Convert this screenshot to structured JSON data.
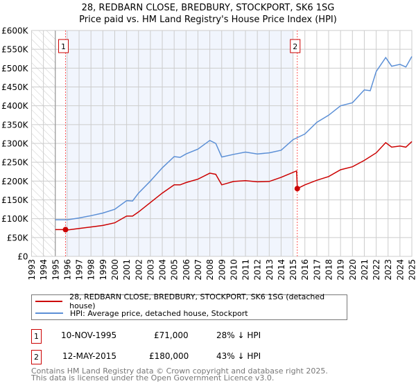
{
  "chart_data": {
    "type": "line",
    "title": "28, REDBARN CLOSE, BREDBURY, STOCKPORT, SK6 1SG",
    "subtitle": "Price paid vs. HM Land Registry's House Price Index (HPI)",
    "xlim": [
      1993,
      2025
    ],
    "ylim": [
      0,
      600000
    ],
    "x_ticks": [
      "1993",
      "1994",
      "1995",
      "1996",
      "1997",
      "1998",
      "1999",
      "2000",
      "2001",
      "2002",
      "2003",
      "2004",
      "2005",
      "2006",
      "2007",
      "2008",
      "2009",
      "2010",
      "2011",
      "2012",
      "2013",
      "2014",
      "2015",
      "2016",
      "2017",
      "2018",
      "2019",
      "2020",
      "2021",
      "2022",
      "2023",
      "2024",
      "2025"
    ],
    "y_ticks": [
      {
        "v": 0,
        "label": "£0"
      },
      {
        "v": 50000,
        "label": "£50K"
      },
      {
        "v": 100000,
        "label": "£100K"
      },
      {
        "v": 150000,
        "label": "£150K"
      },
      {
        "v": 200000,
        "label": "£200K"
      },
      {
        "v": 250000,
        "label": "£250K"
      },
      {
        "v": 300000,
        "label": "£300K"
      },
      {
        "v": 350000,
        "label": "£350K"
      },
      {
        "v": 400000,
        "label": "£400K"
      },
      {
        "v": 450000,
        "label": "£450K"
      },
      {
        "v": 500000,
        "label": "£500K"
      },
      {
        "v": 550000,
        "label": "£550K"
      },
      {
        "v": 600000,
        "label": "£600K"
      }
    ],
    "grid": true,
    "hatched_range": [
      1993,
      1995
    ],
    "shaded_range": [
      1995.86,
      2015.0
    ],
    "series": [
      {
        "name": "28, REDBARN CLOSE, BREDBURY, STOCKPORT, SK6 1SG (detached house)",
        "color": "#cc0000",
        "x": [
          1995,
          1995.86,
          1996,
          1997,
          1998,
          1999,
          2000,
          2001,
          2001.5,
          2002,
          2003,
          2004,
          2005,
          2005.5,
          2006,
          2007,
          2008,
          2008.5,
          2009,
          2010,
          2011,
          2012,
          2013,
          2014,
          2015.3,
          2015.37,
          2016,
          2017,
          2018,
          2019,
          2020,
          2021,
          2022,
          2022.8,
          2023.3,
          2024,
          2024.5,
          2025
        ],
        "y": [
          71000,
          71000,
          70000,
          74000,
          78000,
          82000,
          89000,
          107000,
          107000,
          118000,
          143000,
          168000,
          190000,
          190000,
          196000,
          205000,
          221000,
          218000,
          190000,
          199000,
          201000,
          198000,
          199000,
          210000,
          227000,
          180000,
          190000,
          202000,
          212000,
          230000,
          238000,
          255000,
          275000,
          302000,
          290000,
          293000,
          290000,
          305000
        ]
      },
      {
        "name": "HPI: Average price, detached house, Stockport",
        "color": "#5b8fd6",
        "x": [
          1995,
          1996,
          1997,
          1998,
          1999,
          2000,
          2001,
          2001.5,
          2002,
          2003,
          2004,
          2005,
          2005.5,
          2006,
          2007,
          2008,
          2008.5,
          2009,
          2010,
          2011,
          2012,
          2013,
          2014,
          2015,
          2016,
          2017,
          2018,
          2019,
          2020,
          2021,
          2021.5,
          2022,
          2022.8,
          2023.3,
          2024,
          2024.5,
          2025
        ],
        "y": [
          97000,
          97000,
          102000,
          108000,
          115000,
          125000,
          148000,
          147000,
          168000,
          200000,
          235000,
          265000,
          263000,
          272000,
          285000,
          308000,
          300000,
          264000,
          271000,
          277000,
          272000,
          275000,
          282000,
          310000,
          325000,
          356000,
          375000,
          400000,
          408000,
          442000,
          440000,
          491000,
          528000,
          505000,
          510000,
          503000,
          531000
        ]
      }
    ],
    "sales": [
      {
        "id": "1",
        "x": 1995.86,
        "y": 71000,
        "date": "10-NOV-1995",
        "price": "£71,000",
        "hpi_diff": "28% ↓ HPI"
      },
      {
        "id": "2",
        "x": 2015.36,
        "y": 180000,
        "date": "12-MAY-2015",
        "price": "£180,000",
        "hpi_diff": "43% ↓ HPI"
      }
    ],
    "legend_position": "below"
  },
  "legend": {
    "red_label": "28, REDBARN CLOSE, BREDBURY, STOCKPORT, SK6 1SG (detached house)",
    "blue_label": "HPI: Average price, detached house, Stockport"
  },
  "footer": {
    "line1": "Contains HM Land Registry data © Crown copyright and database right 2025.",
    "line2": "This data is licensed under the Open Government Licence v3.0."
  }
}
